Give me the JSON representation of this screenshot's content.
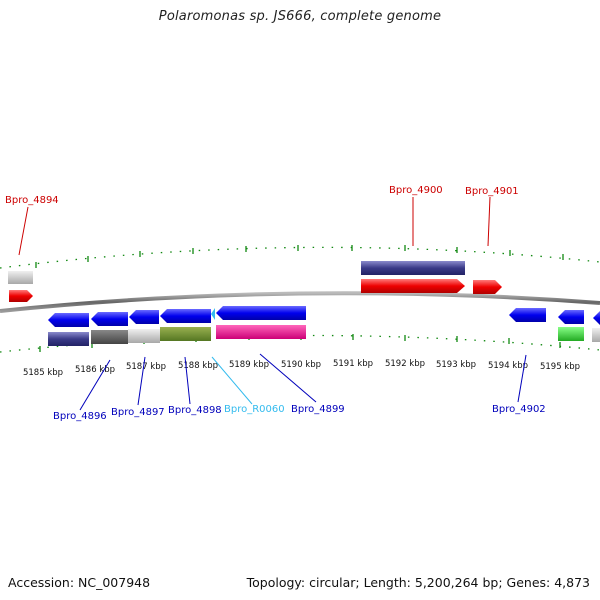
{
  "title": "Polaromonas sp. JS666, complete genome",
  "footer": {
    "accession": "Accession: NC_007948",
    "summary": "Topology: circular; Length: 5,200,264 bp; Genes: 4,873"
  },
  "colors": {
    "forward_label": "#cc0000",
    "reverse_label": "#0000bb",
    "rna_label": "#33bbee",
    "backbone": "#777777",
    "tick": "#118811"
  },
  "scale": {
    "ticks": [
      "5185 kbp",
      "5186 kbp",
      "5187 kbp",
      "5188 kbp",
      "5189 kbp",
      "5190 kbp",
      "5191 kbp",
      "5192 kbp",
      "5193 kbp",
      "5194 kbp",
      "5195 kbp"
    ]
  },
  "labels": {
    "top": [
      "Bpro_4894",
      "Bpro_4900",
      "Bpro_4901"
    ],
    "bottom": [
      "Bpro_4896",
      "Bpro_4897",
      "Bpro_4898",
      "Bpro_R0060",
      "Bpro_4899",
      "Bpro_4902"
    ]
  }
}
